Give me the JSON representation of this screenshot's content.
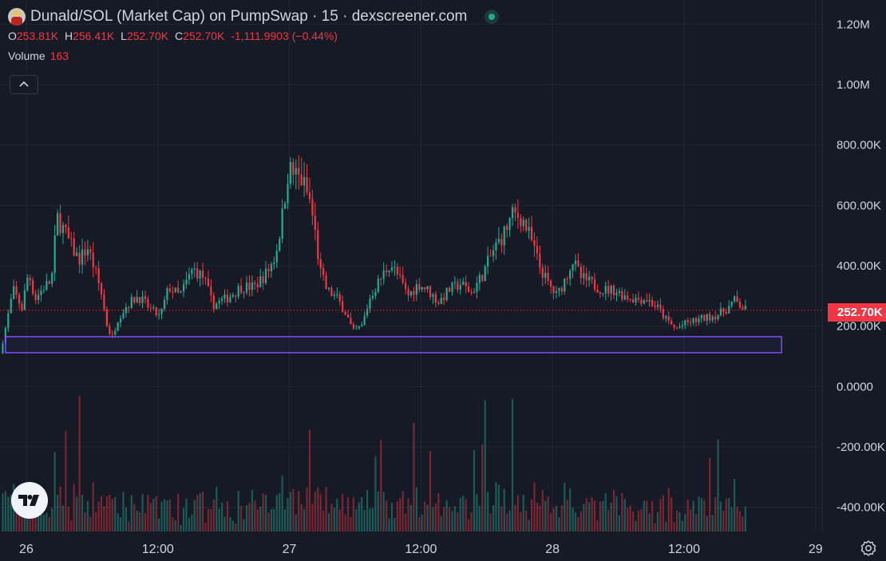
{
  "header": {
    "title": "Dunald/SOL (Market Cap) on PumpSwap · 15 · dexscreener.com",
    "ohlc": [
      {
        "key": "O",
        "value": "253.81K"
      },
      {
        "key": "H",
        "value": "256.41K"
      },
      {
        "key": "L",
        "value": "252.70K"
      },
      {
        "key": "C",
        "value": "252.70K"
      }
    ],
    "change": "-1,111.9903 (−0.44%)",
    "volume_label": "Volume",
    "volume_value": "163"
  },
  "price_tag": "252.70K",
  "colors": {
    "background": "#161a25",
    "up": "#22ab94",
    "down": "#f23645",
    "zone_border": "#7c4dff",
    "grid": "#232733"
  },
  "icons": [
    "avatar-icon",
    "live-status-icon",
    "chevron-up-icon",
    "tradingview-logo-icon",
    "settings-icon"
  ],
  "chart_data": {
    "type": "candlestick",
    "title": "Dunald/SOL (Market Cap) on PumpSwap · 15 · dexscreener.com",
    "y_ticks": [
      "1.20M",
      "1.00M",
      "800.00K",
      "600.00K",
      "400.00K",
      "200.00K",
      "0.0000",
      "-200.00K",
      "-400.00K"
    ],
    "y_tick_values": [
      1200000,
      1000000,
      800000,
      600000,
      400000,
      200000,
      0,
      -200000,
      -400000
    ],
    "ylim": [
      -480000,
      1280000
    ],
    "x_ticks": [
      {
        "label": "26",
        "t": 0
      },
      {
        "label": "12:00",
        "t": 12
      },
      {
        "label": "27",
        "t": 24
      },
      {
        "label": "12:00",
        "t": 36
      },
      {
        "label": "28",
        "t": 48
      },
      {
        "label": "12:00",
        "t": 60
      },
      {
        "label": "29",
        "t": 72
      }
    ],
    "x_unit": "hours since day 26 00:00",
    "xlim": [
      -2.4,
      72.6
    ],
    "last_price": 252700,
    "zone": {
      "x_start": -1.9,
      "x_end": 68.9,
      "y_low": 112000,
      "y_high": 165000
    },
    "price_path": [
      [
        -2.4,
        110000
      ],
      [
        -1.8,
        210000
      ],
      [
        -1.2,
        320000
      ],
      [
        -0.4,
        260000
      ],
      [
        0.2,
        380000
      ],
      [
        0.8,
        290000
      ],
      [
        1.6,
        330000
      ],
      [
        2.3,
        350000
      ],
      [
        2.8,
        560000
      ],
      [
        3.4,
        520000
      ],
      [
        4.0,
        470000
      ],
      [
        4.8,
        420000
      ],
      [
        5.6,
        460000
      ],
      [
        6.3,
        380000
      ],
      [
        6.9,
        300000
      ],
      [
        7.3,
        210000
      ],
      [
        7.8,
        160000
      ],
      [
        8.4,
        230000
      ],
      [
        9.2,
        270000
      ],
      [
        10.2,
        300000
      ],
      [
        11.2,
        260000
      ],
      [
        12.2,
        230000
      ],
      [
        13.0,
        330000
      ],
      [
        14.0,
        300000
      ],
      [
        15.2,
        390000
      ],
      [
        16.2,
        360000
      ],
      [
        17.0,
        270000
      ],
      [
        18.2,
        290000
      ],
      [
        19.6,
        330000
      ],
      [
        20.8,
        330000
      ],
      [
        22.0,
        380000
      ],
      [
        22.7,
        430000
      ],
      [
        23.3,
        550000
      ],
      [
        23.9,
        720000
      ],
      [
        24.6,
        700000
      ],
      [
        25.2,
        680000
      ],
      [
        25.9,
        610000
      ],
      [
        26.3,
        520000
      ],
      [
        26.8,
        380000
      ],
      [
        27.4,
        320000
      ],
      [
        28.4,
        290000
      ],
      [
        29.2,
        240000
      ],
      [
        29.8,
        180000
      ],
      [
        30.6,
        200000
      ],
      [
        31.4,
        300000
      ],
      [
        32.2,
        350000
      ],
      [
        33.2,
        410000
      ],
      [
        34.0,
        360000
      ],
      [
        34.8,
        300000
      ],
      [
        35.8,
        340000
      ],
      [
        36.6,
        320000
      ],
      [
        37.6,
        280000
      ],
      [
        38.6,
        320000
      ],
      [
        39.6,
        340000
      ],
      [
        40.6,
        310000
      ],
      [
        41.6,
        370000
      ],
      [
        42.6,
        450000
      ],
      [
        43.6,
        510000
      ],
      [
        44.4,
        570000
      ],
      [
        45.2,
        560000
      ],
      [
        46.0,
        490000
      ],
      [
        46.8,
        400000
      ],
      [
        47.6,
        340000
      ],
      [
        48.4,
        300000
      ],
      [
        49.2,
        360000
      ],
      [
        49.8,
        420000
      ],
      [
        50.6,
        360000
      ],
      [
        51.6,
        340000
      ],
      [
        52.6,
        320000
      ],
      [
        53.6,
        320000
      ],
      [
        54.6,
        300000
      ],
      [
        55.6,
        290000
      ],
      [
        56.6,
        290000
      ],
      [
        57.6,
        260000
      ],
      [
        58.4,
        220000
      ],
      [
        59.2,
        190000
      ],
      [
        60.2,
        210000
      ],
      [
        61.2,
        220000
      ],
      [
        62.2,
        230000
      ],
      [
        63.2,
        240000
      ],
      [
        64.0,
        260000
      ],
      [
        64.6,
        285000
      ],
      [
        65.2,
        265000
      ],
      [
        65.6,
        252700
      ]
    ]
  }
}
